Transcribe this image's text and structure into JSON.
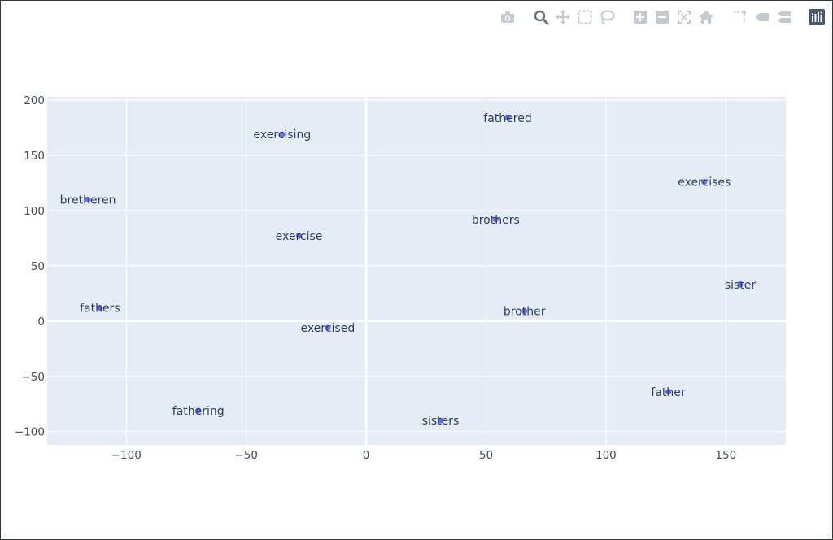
{
  "modebar": {
    "icons": [
      "camera-icon",
      "zoom-icon",
      "pan-icon",
      "box-select-icon",
      "lasso-select-icon",
      "zoom-in-icon",
      "zoom-out-icon",
      "autoscale-icon",
      "home-icon",
      "spike-lines-icon",
      "hover-closest-icon",
      "hover-compare-icon",
      "plotly-logo-icon"
    ],
    "active": "zoom-icon",
    "color_inactive": "#c4c9cf",
    "color_active": "#6b7380",
    "logo_color": "#4a5a75"
  },
  "colors": {
    "plot_bg": "#e5ecf6",
    "grid": "#ffffff",
    "marker": "#636efa",
    "text": "#2a3f5f"
  },
  "chart_data": {
    "type": "scatter",
    "title": "",
    "xlabel": "",
    "ylabel": "",
    "xlim": [
      -133,
      175
    ],
    "ylim": [
      -112,
      203
    ],
    "xticks": [
      -100,
      -50,
      0,
      50,
      100,
      150
    ],
    "yticks": [
      -100,
      -50,
      0,
      50,
      100,
      150,
      200
    ],
    "xtick_labels": [
      "−100",
      "−50",
      "0",
      "50",
      "100",
      "150"
    ],
    "ytick_labels": [
      "−100",
      "−50",
      "0",
      "50",
      "100",
      "150",
      "200"
    ],
    "grid": true,
    "legend": "none",
    "points": [
      {
        "label": "fathered",
        "x": 59,
        "y": 184
      },
      {
        "label": "exercising",
        "x": -35,
        "y": 169
      },
      {
        "label": "exercises",
        "x": 141,
        "y": 126
      },
      {
        "label": "bretheren",
        "x": -116,
        "y": 110
      },
      {
        "label": "brothers",
        "x": 54,
        "y": 92
      },
      {
        "label": "exercise",
        "x": -28,
        "y": 77
      },
      {
        "label": "sister",
        "x": 156,
        "y": 33
      },
      {
        "label": "fathers",
        "x": -111,
        "y": 12
      },
      {
        "label": "brother",
        "x": 66,
        "y": 9
      },
      {
        "label": "exercised",
        "x": -16,
        "y": -6
      },
      {
        "label": "father",
        "x": 126,
        "y": -64
      },
      {
        "label": "fathering",
        "x": -70,
        "y": -81
      },
      {
        "label": "sisters",
        "x": 31,
        "y": -90
      }
    ]
  }
}
